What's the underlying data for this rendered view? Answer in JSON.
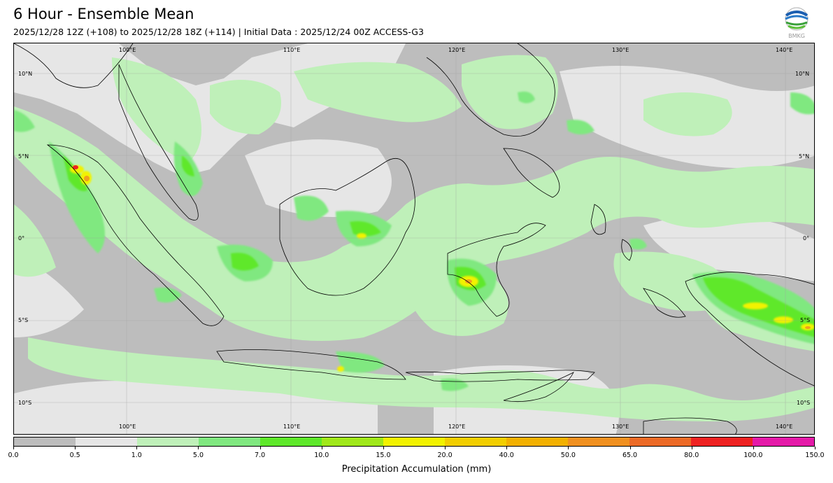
{
  "header": {
    "title": "6 Hour - Ensemble Mean",
    "subtitle": "2025/12/28 12Z (+108) to 2025/12/28 18Z (+114) | Initial Data : 2025/12/24 00Z ACCESS-G3",
    "logo_text": "BMKG"
  },
  "map": {
    "lon_labels": [
      "100°E",
      "110°E",
      "120°E",
      "130°E",
      "140°E"
    ],
    "lat_labels": [
      "10°N",
      "5°N",
      "0°",
      "5°S",
      "10°S"
    ],
    "colors": {
      "background": "#bdbdbd",
      "very_light": "#e6e6e6",
      "light_green": "#bff0b9",
      "green": "#80e880",
      "bright_green": "#5ee82a",
      "yellow": "#f2f200",
      "orange": "#f0a020",
      "red": "#ee2222",
      "coastline": "#000000"
    }
  },
  "colorbar": {
    "ticks": [
      "0.0",
      "0.5",
      "1.0",
      "5.0",
      "7.0",
      "10.0",
      "15.0",
      "20.0",
      "40.0",
      "50.0",
      "65.0",
      "80.0",
      "100.0",
      "150.0"
    ],
    "colors": [
      "#bdbdbd",
      "#e6e6e6",
      "#bff0b9",
      "#80e880",
      "#5ee82a",
      "#a0e81a",
      "#f2f200",
      "#f2ce00",
      "#f2b000",
      "#f09020",
      "#ec6a26",
      "#ee2222",
      "#e41aa8"
    ],
    "label": "Precipitation Accumulation (mm)"
  }
}
